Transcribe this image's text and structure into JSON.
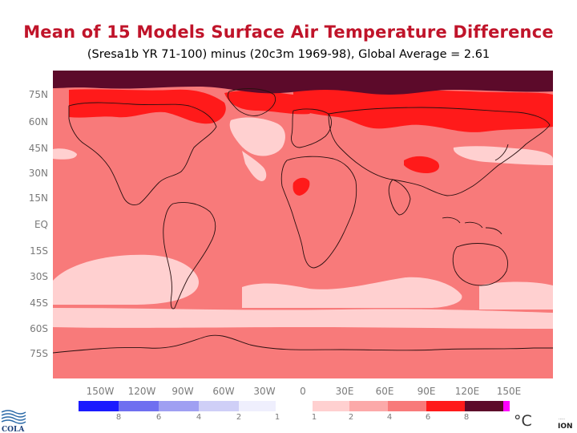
{
  "title": "Mean of 15 Models Surface Air Temperature Difference",
  "subtitle": "(Sresa1b YR 71-100) minus (20c3m 1969-98),  Global Average = 2.61",
  "latitude_labels": [
    "75N",
    "60N",
    "45N",
    "30N",
    "15N",
    "EQ",
    "15S",
    "30S",
    "45S",
    "60S",
    "75S"
  ],
  "longitude_labels": [
    "150W",
    "120W",
    "90W",
    "60W",
    "30W",
    "0",
    "30E",
    "60E",
    "90E",
    "120E",
    "150E"
  ],
  "legend": {
    "unit": "°C",
    "colors": [
      "#1a1aff",
      "#6f6ff0",
      "#9f9ff2",
      "#cfcff7",
      "#efeffd",
      "#ffffff",
      "#ffd0d0",
      "#fca9a9",
      "#f87a7a",
      "#ff1a1a",
      "#5c0a2a",
      "#ff00ff"
    ],
    "labels": [
      "8",
      "6",
      "4",
      "2",
      "1",
      "1",
      "2",
      "4",
      "6",
      "8"
    ]
  },
  "map_colors": {
    "band_1_2": "#ffd0d0",
    "band_2_4": "#f87a7a",
    "band_4_6": "#ff1a1a",
    "band_6_8": "#5c0a2a",
    "coastline": "#2a1010"
  },
  "logos": {
    "left": "COLA",
    "right": "ION"
  }
}
